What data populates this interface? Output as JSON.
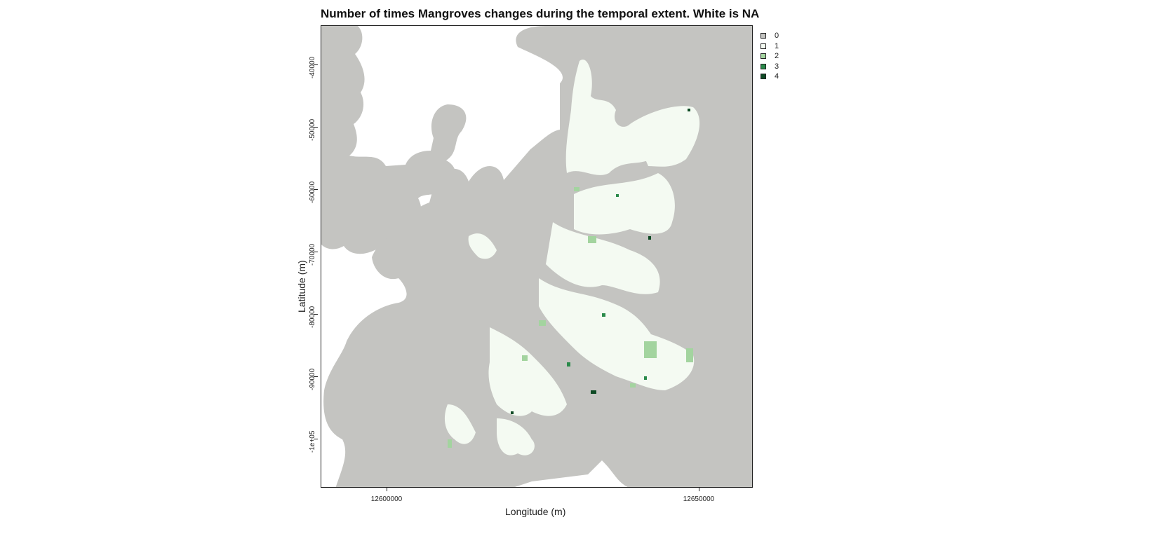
{
  "title": "Number of times Mangroves changes during the temporal extent. White is NA",
  "x_axis": {
    "label": "Longitude (m)",
    "ticks": [
      "12600000",
      "12650000"
    ]
  },
  "y_axis": {
    "label": "Latitude (m)",
    "ticks": [
      "-40000",
      "-50000",
      "-60000",
      "-70000",
      "-80000",
      "-90000",
      "-1e+05"
    ]
  },
  "legend": {
    "placement": "top-right, outside plot",
    "items": [
      {
        "label": "0",
        "color": "#c4c4c1"
      },
      {
        "label": "1",
        "color": "#f4faf2"
      },
      {
        "label": "2",
        "color": "#a3d49f"
      },
      {
        "label": "3",
        "color": "#2a8a4a"
      },
      {
        "label": "4",
        "color": "#0e4a24"
      }
    ]
  },
  "colors": {
    "na": "#ffffff",
    "panel_border": "#222222"
  }
}
